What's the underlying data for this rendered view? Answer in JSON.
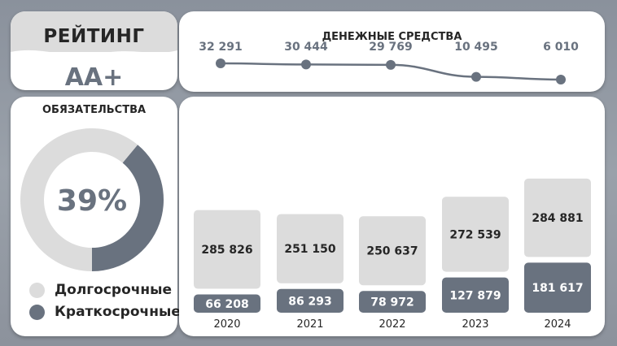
{
  "rating": {
    "title": "РЕЙТИНГ",
    "value": "АА+"
  },
  "cash": {
    "title": "ДЕНЕЖНЫЕ СРЕДСТВА",
    "labels": [
      "32 291",
      "30 444",
      "29 769",
      "10 495",
      "6 010"
    ]
  },
  "liabilities": {
    "title": "ОБЯЗАТЕЛЬСТВА",
    "percent_label": "39%",
    "legend": [
      {
        "label": "Долгосрочные",
        "color": "#dcdcdc"
      },
      {
        "label": "Краткосрочные",
        "color": "#69727f"
      }
    ]
  },
  "colors": {
    "long": "#dcdcdc",
    "short": "#69727f",
    "line": "#69727f",
    "text_dark": "#262626",
    "text_short": "#ffffff",
    "text_long": "#262626"
  },
  "chart_data": [
    {
      "type": "line",
      "title": "ДЕНЕЖНЫЕ СРЕДСТВА",
      "x": [
        "2020",
        "2021",
        "2022",
        "2023",
        "2024"
      ],
      "values": [
        32291,
        30444,
        29769,
        10495,
        6010
      ]
    },
    {
      "type": "pie",
      "title": "ОБЯЗАТЕЛЬСТВА",
      "categories": [
        "Краткосрочные",
        "Долгосрочные"
      ],
      "values": [
        39,
        61
      ]
    },
    {
      "type": "bar",
      "stacked": true,
      "categories": [
        "2020",
        "2021",
        "2022",
        "2023",
        "2024"
      ],
      "series": [
        {
          "name": "Краткосрочные",
          "values": [
            66208,
            86293,
            78972,
            127879,
            181617
          ],
          "labels": [
            "66 208",
            "86 293",
            "78 972",
            "127 879",
            "181 617"
          ]
        },
        {
          "name": "Долгосрочные",
          "values": [
            285826,
            251150,
            250637,
            272539,
            284881
          ],
          "labels": [
            "285 826",
            "251 150",
            "250 637",
            "272 539",
            "284 881"
          ]
        }
      ]
    }
  ]
}
